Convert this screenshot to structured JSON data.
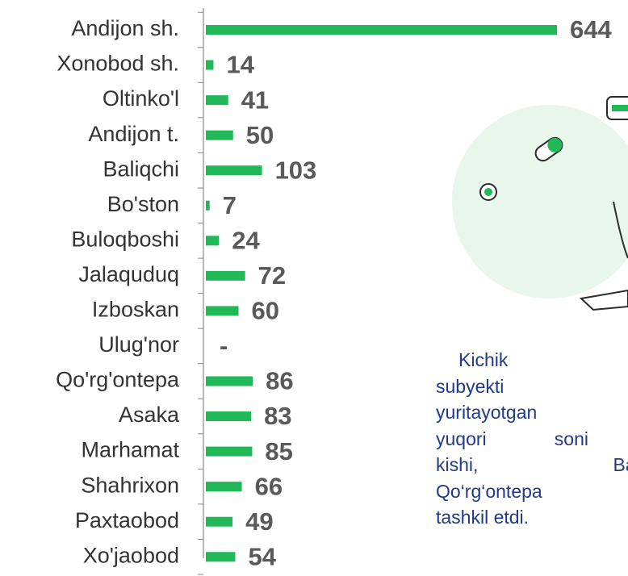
{
  "chart_data": {
    "type": "bar",
    "orientation": "horizontal",
    "categories": [
      "Andijon sh.",
      "Xonobod sh.",
      "Oltinko'l",
      "Andijon t.",
      "Baliqchi",
      "Bo'ston",
      "Buloqboshi",
      "Jalaquduq",
      "Izboskan",
      "Ulug'nor",
      "Qo'rg'ontepa",
      "Asaka",
      "Marhamat",
      "Shahrixon",
      "Paxtaobod",
      "Xo'jaobod"
    ],
    "values": [
      644,
      14,
      41,
      50,
      103,
      7,
      24,
      72,
      60,
      null,
      86,
      83,
      85,
      66,
      49,
      54
    ],
    "value_labels": [
      "644",
      "14",
      "41",
      "50",
      "103",
      "7",
      "24",
      "72",
      "60",
      "-",
      "86",
      "83",
      "85",
      "66",
      "49",
      "54"
    ],
    "color": "#21b858"
  },
  "text": {
    "lines": [
      "Kichik tad",
      "subyekti s",
      "yuritayotgan",
      "yuqori soni An",
      "kishi, Baliqchi",
      "Qo‘rg‘ontepa tu",
      "tashkil etdi."
    ]
  }
}
